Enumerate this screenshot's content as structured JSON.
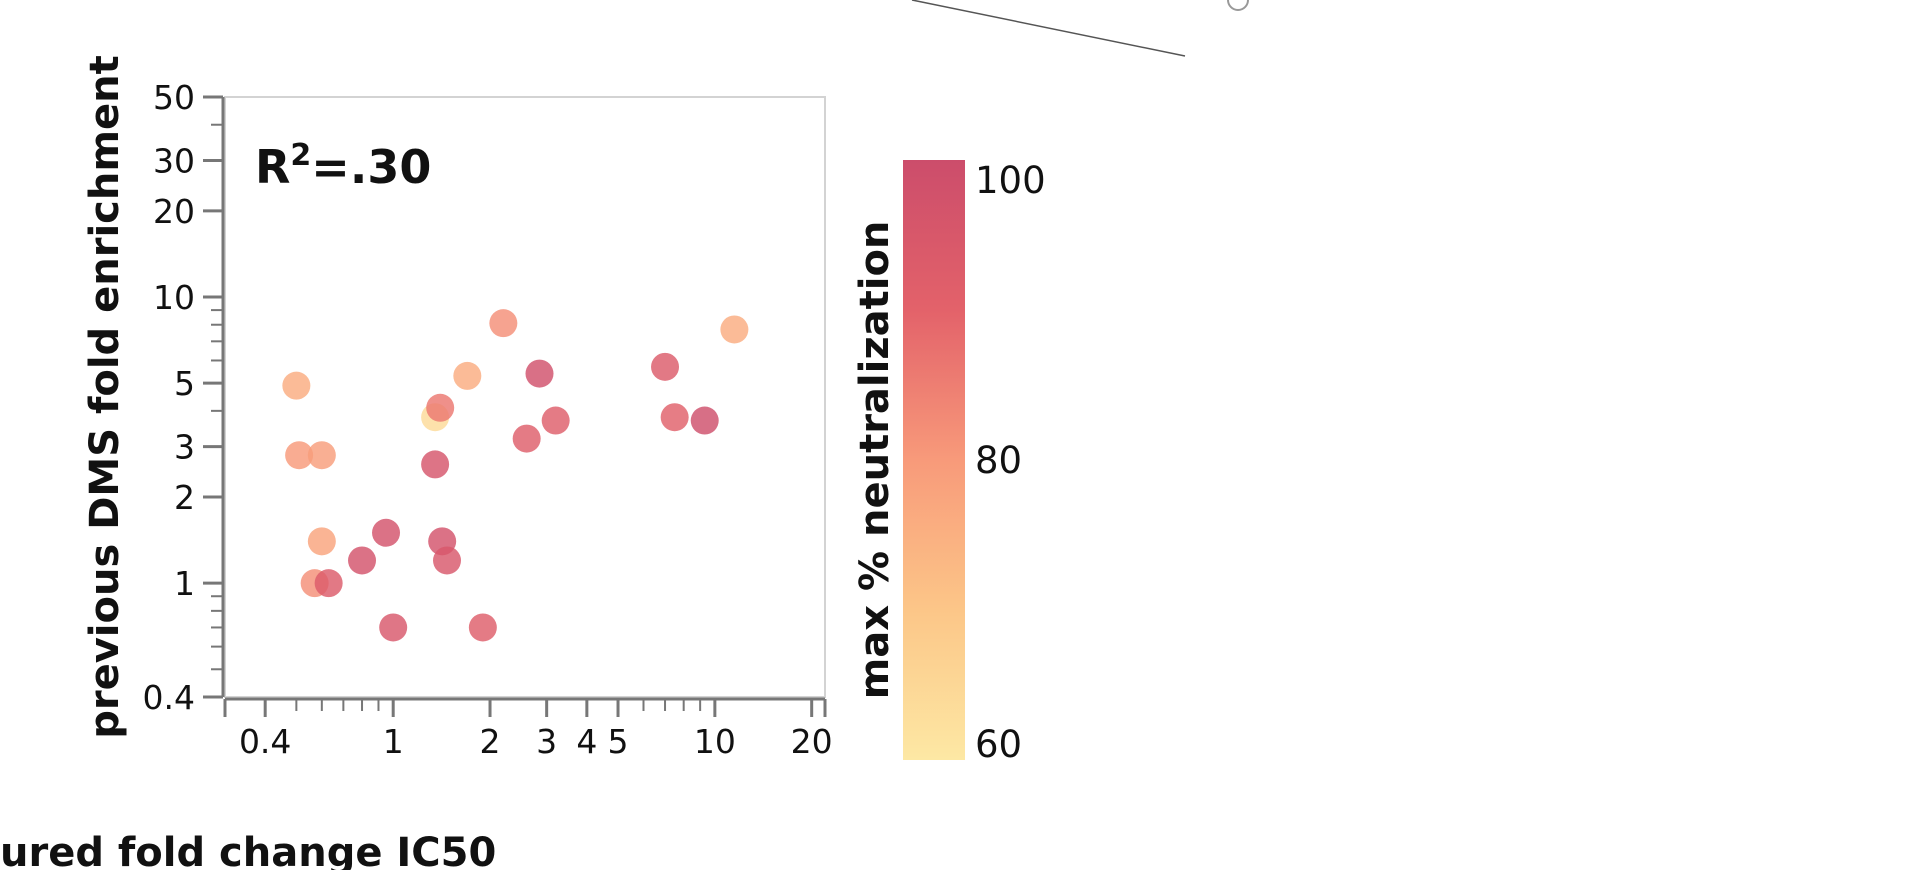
{
  "chart_data": {
    "type": "scatter",
    "xlabel": "ured fold change IC50",
    "ylabel": "previous DMS fold enrichment",
    "xscale": "log",
    "yscale": "log",
    "xlim": [
      0.3,
      22
    ],
    "ylim": [
      0.4,
      50
    ],
    "x_ticks": [
      0.4,
      1,
      2,
      3,
      4,
      5,
      10,
      20
    ],
    "x_tick_labels": [
      "0.4",
      "1",
      "2",
      "3",
      "4",
      "5",
      "10",
      "20"
    ],
    "y_ticks": [
      0.4,
      1,
      2,
      3,
      5,
      10,
      20,
      30,
      50
    ],
    "y_tick_labels": [
      "0.4",
      "1",
      "2",
      "3",
      "5",
      "10",
      "20",
      "30",
      "50"
    ],
    "annotation": {
      "base": "R",
      "superscript": "2",
      "rest": "=.30"
    },
    "colorbar": {
      "label": "max % neutralization",
      "range": [
        60,
        100
      ],
      "ticks": [
        60,
        80,
        100
      ],
      "tick_labels": [
        "60",
        "80",
        "100"
      ],
      "colors": [
        "#fde8a4",
        "#fcc688",
        "#f89a7a",
        "#e3626a",
        "#cc4d6b"
      ]
    },
    "points": [
      {
        "x": 0.5,
        "y": 4.9,
        "c": 76
      },
      {
        "x": 0.51,
        "y": 2.8,
        "c": 80
      },
      {
        "x": 0.6,
        "y": 2.8,
        "c": 79
      },
      {
        "x": 0.6,
        "y": 1.4,
        "c": 78
      },
      {
        "x": 0.57,
        "y": 1.0,
        "c": 82
      },
      {
        "x": 0.63,
        "y": 1.0,
        "c": 93
      },
      {
        "x": 0.8,
        "y": 1.2,
        "c": 97
      },
      {
        "x": 0.95,
        "y": 1.5,
        "c": 97
      },
      {
        "x": 1.0,
        "y": 0.7,
        "c": 95
      },
      {
        "x": 1.35,
        "y": 3.8,
        "c": 64
      },
      {
        "x": 1.4,
        "y": 4.1,
        "c": 86
      },
      {
        "x": 1.35,
        "y": 2.6,
        "c": 96
      },
      {
        "x": 1.42,
        "y": 1.4,
        "c": 97
      },
      {
        "x": 1.47,
        "y": 1.2,
        "c": 95
      },
      {
        "x": 1.7,
        "y": 5.3,
        "c": 76
      },
      {
        "x": 1.9,
        "y": 0.7,
        "c": 92
      },
      {
        "x": 2.2,
        "y": 8.1,
        "c": 82
      },
      {
        "x": 2.6,
        "y": 3.2,
        "c": 92
      },
      {
        "x": 2.85,
        "y": 5.4,
        "c": 98
      },
      {
        "x": 3.2,
        "y": 3.7,
        "c": 92
      },
      {
        "x": 7.0,
        "y": 5.7,
        "c": 93
      },
      {
        "x": 7.5,
        "y": 3.8,
        "c": 91
      },
      {
        "x": 9.3,
        "y": 3.7,
        "c": 99
      },
      {
        "x": 11.5,
        "y": 7.7,
        "c": 76
      }
    ]
  }
}
